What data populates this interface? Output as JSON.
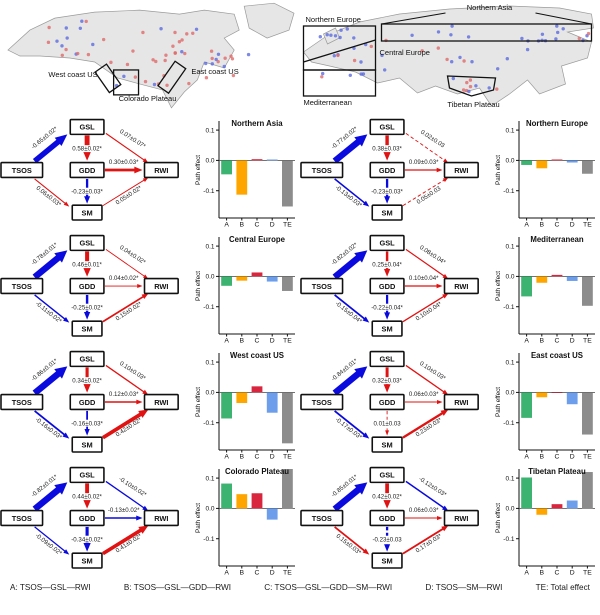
{
  "figure": {
    "maps": {
      "left": {
        "labels": [
          "West coast US",
          "East coast US",
          "Colorado Plateau"
        ]
      },
      "right": {
        "labels": [
          "Northern Asia",
          "Northern Europe",
          "Central Europe",
          "Mediterranean",
          "Tibetan Plateau"
        ]
      },
      "dot_positive_color": "#e06a6a",
      "dot_negative_color": "#5b6be0",
      "land_color": "#e6e6e6"
    },
    "palette": {
      "positive_path": "#e11212",
      "negative_path": "#0a0adf",
      "bar_colors": {
        "A": "#3cb371",
        "B": "#ffa500",
        "C": "#d7263d",
        "D": "#6d9eeb",
        "TE": "#8c8c8c"
      }
    },
    "nodes": [
      "TSOS",
      "GSL",
      "GDD",
      "SM",
      "RWI"
    ],
    "panels": [
      {
        "title": "Northern Asia",
        "edges": {
          "tsos_gsl": {
            "label": "-0.65±0.02*"
          },
          "gsl_rwi": {
            "label": "0.07±0.07*"
          },
          "gsl_gdd": {
            "label": "0.58±0.02*"
          },
          "gdd_rwi": {
            "label": "0.30±0.03*"
          },
          "gdd_sm": {
            "label": "-0.23±0.03*"
          },
          "tsos_sm": {
            "label": "0.06±0.03*"
          },
          "sm_rwi": {
            "label": "0.05±0.02*"
          }
        }
      },
      {
        "title": "Northern Europe",
        "edges": {
          "tsos_gsl": {
            "label": "-0.77±0.02*"
          },
          "gsl_rwi": {
            "label": "0.02±0.03",
            "dashed": true
          },
          "gsl_gdd": {
            "label": "0.38±0.03*"
          },
          "gdd_rwi": {
            "label": "0.09±0.03*"
          },
          "gdd_sm": {
            "label": "-0.23±0.03*"
          },
          "tsos_sm": {
            "label": "-0.13±0.03*"
          },
          "sm_rwi": {
            "label": "0.05±0.03",
            "dashed": true
          }
        }
      },
      {
        "title": "Central Europe",
        "edges": {
          "tsos_gsl": {
            "label": "-0.78±0.01*"
          },
          "gsl_rwi": {
            "label": "0.04±0.02*"
          },
          "gsl_gdd": {
            "label": "0.46±0.01*"
          },
          "gdd_rwi": {
            "label": "0.04±0.02*"
          },
          "gdd_sm": {
            "label": "-0.25±0.02*"
          },
          "tsos_sm": {
            "label": "-0.11±0.02*"
          },
          "sm_rwi": {
            "label": "0.15±0.02*"
          }
        }
      },
      {
        "title": "Mediterranean",
        "edges": {
          "tsos_gsl": {
            "label": "-0.82±0.02*"
          },
          "gsl_rwi": {
            "label": "0.08±0.04*"
          },
          "gsl_gdd": {
            "label": "0.25±0.04*"
          },
          "gdd_rwi": {
            "label": "0.10±0.04*"
          },
          "gdd_sm": {
            "label": "-0.22±0.04*"
          },
          "tsos_sm": {
            "label": "-0.15±0.04*"
          },
          "sm_rwi": {
            "label": "0.10±0.04*"
          }
        }
      },
      {
        "title": "West coast US",
        "edges": {
          "tsos_gsl": {
            "label": "-0.86±0.01*"
          },
          "gsl_rwi": {
            "label": "0.10±0.03*"
          },
          "gsl_gdd": {
            "label": "0.34±0.02*"
          },
          "gdd_rwi": {
            "label": "0.12±0.03*"
          },
          "gdd_sm": {
            "label": "-0.16±0.03*"
          },
          "tsos_sm": {
            "label": "-0.16±0.03*"
          },
          "sm_rwi": {
            "label": "0.42±0.02*"
          }
        }
      },
      {
        "title": "East coast US",
        "edges": {
          "tsos_gsl": {
            "label": "-0.84±0.01*"
          },
          "gsl_rwi": {
            "label": "0.10±0.03*"
          },
          "gsl_gdd": {
            "label": "0.32±0.03*"
          },
          "gdd_rwi": {
            "label": "0.06±0.03*"
          },
          "gdd_sm": {
            "label": "0.01±0.03",
            "dashed": true
          },
          "tsos_sm": {
            "label": "-0.17±0.03*"
          },
          "sm_rwi": {
            "label": "0.23±0.03*"
          }
        }
      },
      {
        "title": "Colorado Plateau",
        "edges": {
          "tsos_gsl": {
            "label": "-0.82±0.01*"
          },
          "gsl_rwi": {
            "label": "-0.10±0.02*"
          },
          "gsl_gdd": {
            "label": "0.44±0.02*"
          },
          "gdd_rwi": {
            "label": "-0.13±0.02*"
          },
          "gdd_sm": {
            "label": "-0.34±0.02*"
          },
          "tsos_sm": {
            "label": "-0.09±0.02*"
          },
          "sm_rwi": {
            "label": "0.41±0.02*"
          }
        }
      },
      {
        "title": "Tibetan Plateau",
        "edges": {
          "tsos_gsl": {
            "label": "-0.85±0.01*"
          },
          "gsl_rwi": {
            "label": "-0.12±0.03*"
          },
          "gsl_gdd": {
            "label": "0.42±0.02*"
          },
          "gdd_rwi": {
            "label": "0.06±0.03*"
          },
          "gdd_sm": {
            "label": "-0.23±0.03",
            "dashed": true
          },
          "tsos_sm": {
            "label": "0.15±0.03*"
          },
          "sm_rwi": {
            "label": "0.17±0.03*"
          }
        }
      }
    ],
    "footer": {
      "items": [
        "A: TSOS—GSL—RWI",
        "B: TSOS—GSL—GDD—RWI",
        "C: TSOS—GSL—GDD—SM—RWI",
        "D: TSOS—SM—RWI",
        "TE: Total effect"
      ]
    }
  },
  "chart_data": [
    {
      "type": "bar",
      "title": "Northern Asia",
      "categories": [
        "A",
        "B",
        "C",
        "D",
        "TE"
      ],
      "values": [
        -0.046,
        -0.113,
        0.004,
        0.003,
        -0.152
      ],
      "ylabel": "Path effect",
      "yticks": [
        0.1,
        0.0,
        -0.1
      ],
      "ytick_labels": [
        "0.1",
        "0.0",
        "-0.1"
      ],
      "ylim": [
        -0.19,
        0.13
      ]
    },
    {
      "type": "bar",
      "title": "Northern Europe",
      "categories": [
        "A",
        "B",
        "C",
        "D",
        "TE"
      ],
      "values": [
        -0.015,
        -0.026,
        0.003,
        -0.007,
        -0.044
      ],
      "ylabel": "Path effect",
      "yticks": [
        0.1,
        0.0,
        -0.1
      ],
      "ytick_labels": [
        "0.1",
        "0.0",
        "-0.1"
      ],
      "ylim": [
        -0.19,
        0.13
      ]
    },
    {
      "type": "bar",
      "title": "Central Europe",
      "categories": [
        "A",
        "B",
        "C",
        "D",
        "TE"
      ],
      "values": [
        -0.031,
        -0.014,
        0.013,
        -0.017,
        -0.048
      ],
      "ylabel": "Path effect",
      "yticks": [
        0.1,
        0.0,
        -0.1
      ],
      "ytick_labels": [
        "0.1",
        "0.0",
        "-0.1"
      ],
      "ylim": [
        -0.19,
        0.13
      ]
    },
    {
      "type": "bar",
      "title": "Mediterranean",
      "categories": [
        "A",
        "B",
        "C",
        "D",
        "TE"
      ],
      "values": [
        -0.066,
        -0.021,
        0.005,
        -0.015,
        -0.097
      ],
      "ylabel": "Path effect",
      "yticks": [
        0.1,
        0.0,
        -0.1
      ],
      "ytick_labels": [
        "0.1",
        "0.0",
        "-0.1"
      ],
      "ylim": [
        -0.19,
        0.13
      ]
    },
    {
      "type": "bar",
      "title": "West coast US",
      "categories": [
        "A",
        "B",
        "C",
        "D",
        "TE"
      ],
      "values": [
        -0.086,
        -0.035,
        0.02,
        -0.067,
        -0.168
      ],
      "ylabel": "Path effect",
      "yticks": [
        0.1,
        0.0,
        -0.1
      ],
      "ytick_labels": [
        "0.1",
        "0.0",
        "-0.1"
      ],
      "ylim": [
        -0.19,
        0.13
      ]
    },
    {
      "type": "bar",
      "title": "East coast US",
      "categories": [
        "A",
        "B",
        "C",
        "D",
        "TE"
      ],
      "values": [
        -0.084,
        -0.016,
        -0.001,
        -0.039,
        -0.139
      ],
      "ylabel": "Path effect",
      "yticks": [
        0.1,
        0.0,
        -0.1
      ],
      "ytick_labels": [
        "0.1",
        "0.0",
        "-0.1"
      ],
      "ylim": [
        -0.19,
        0.13
      ]
    },
    {
      "type": "bar",
      "title": "Colorado Plateau",
      "categories": [
        "A",
        "B",
        "C",
        "D",
        "TE"
      ],
      "values": [
        0.082,
        0.047,
        0.05,
        -0.037,
        0.142
      ],
      "ylabel": "Path effect",
      "yticks": [
        0.1,
        0.0,
        -0.1
      ],
      "ytick_labels": [
        "0.1",
        "0.0",
        "-0.1"
      ],
      "ylim": [
        -0.19,
        0.13
      ]
    },
    {
      "type": "bar",
      "title": "Tibetan Plateau",
      "categories": [
        "A",
        "B",
        "C",
        "D",
        "TE"
      ],
      "values": [
        0.102,
        -0.021,
        0.014,
        0.026,
        0.12
      ],
      "ylabel": "Path effect",
      "yticks": [
        0.1,
        0.0,
        -0.1
      ],
      "ytick_labels": [
        "0.1",
        "0.0",
        "-0.1"
      ],
      "ylim": [
        -0.19,
        0.13
      ]
    }
  ]
}
